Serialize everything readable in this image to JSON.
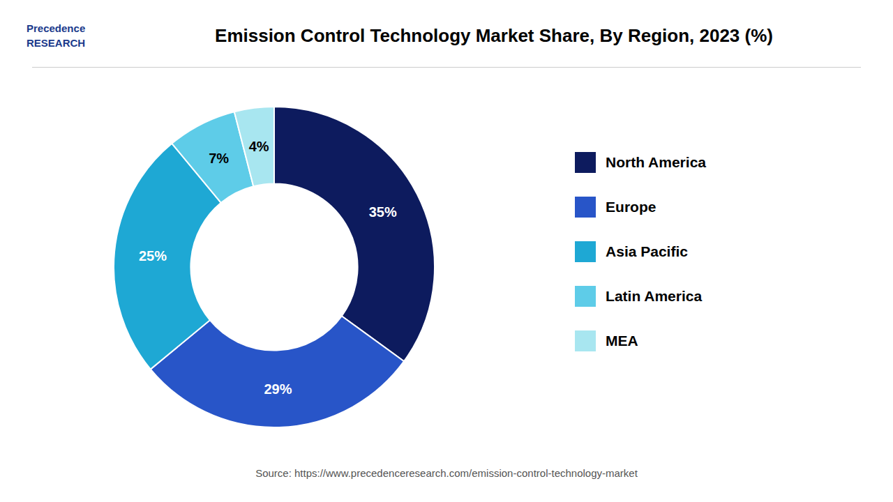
{
  "chart_data": {
    "type": "pie",
    "title": "Emission Control Technology Market Share, By Region, 2023 (%)",
    "categories": [
      "North America",
      "Europe",
      "Asia Pacific",
      "Latin America",
      "MEA"
    ],
    "values": [
      35,
      29,
      25,
      7,
      4
    ],
    "value_labels": [
      "35%",
      "29%",
      "25%",
      "7%",
      "4%"
    ],
    "colors": [
      "#0d1b5e",
      "#2855c8",
      "#1ea8d4",
      "#5ecce8",
      "#a8e6f0"
    ],
    "data_labels": true,
    "legend": "right",
    "annotations": [
      "Precedence",
      "RESEARCH",
      "Source: https://www.precedenceresearch.com/emission-control-technology-market"
    ]
  }
}
